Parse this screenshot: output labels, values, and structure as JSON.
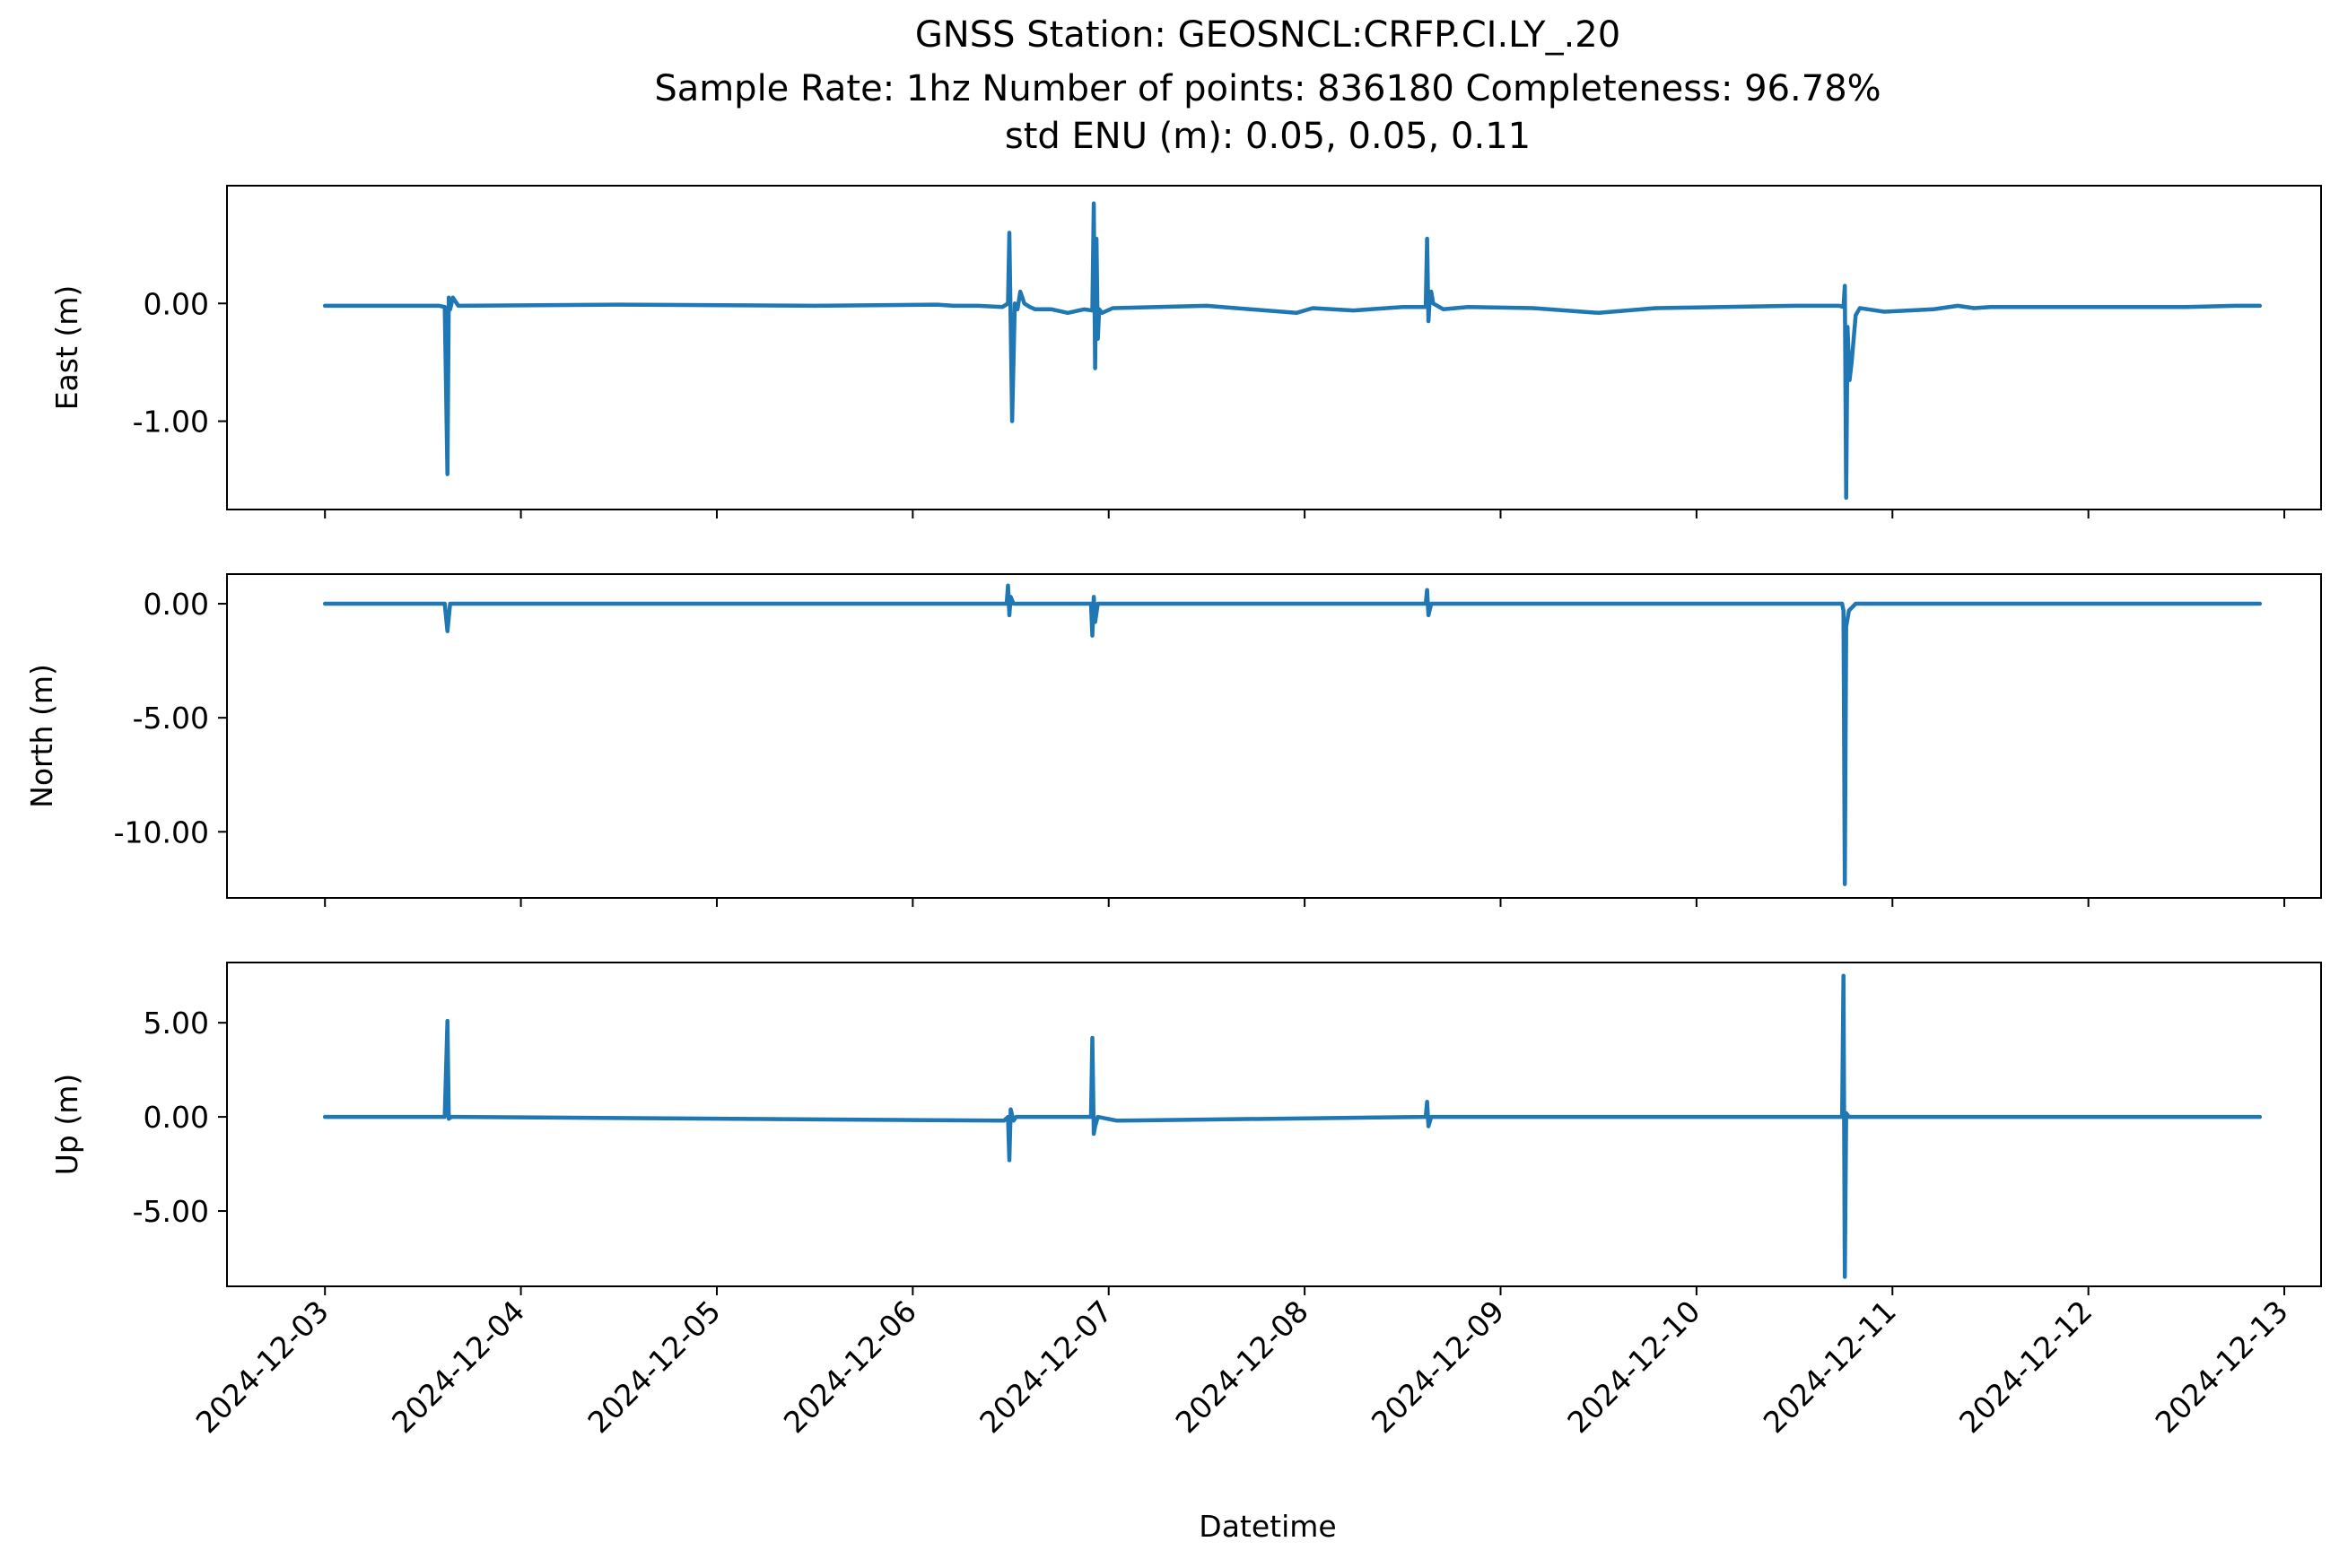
{
  "chart_data": {
    "type": "line",
    "title_lines": [
      "GNSS Station: GEOSNCL:CRFP.CI.LY_.20",
      "Sample Rate: 1hz   Number of points: 836180    Completeness:  96.78%",
      "std ENU (m):  0.05, 0.05, 0.11"
    ],
    "xlabel": "Datetime",
    "x_ticks": [
      "2024-12-03",
      "2024-12-04",
      "2024-12-05",
      "2024-12-06",
      "2024-12-07",
      "2024-12-08",
      "2024-12-09",
      "2024-12-10",
      "2024-12-11",
      "2024-12-12",
      "2024-12-13"
    ],
    "xlim": [
      "2024-12-02 12:00",
      "2024-12-13 04:30"
    ],
    "line_color": "#1f77b4",
    "grid": false,
    "legend": "none",
    "panels": [
      {
        "ylabel": "East (m)",
        "ylim": [
          -1.75,
          1.0
        ],
        "y_ticks": [
          0.0,
          -1.0
        ],
        "y_tick_labels": [
          "0.00",
          "-1.00"
        ],
        "series": [
          {
            "x": [
              "2024-12-03 00:00",
              "2024-12-03 14:00",
              "2024-12-03 14:40",
              "2024-12-03 15:00",
              "2024-12-03 15:10",
              "2024-12-03 15:20",
              "2024-12-03 15:40",
              "2024-12-03 16:20",
              "2024-12-04 12:00",
              "2024-12-05 12:00",
              "2024-12-06 03:00",
              "2024-12-06 05:00",
              "2024-12-06 08:00",
              "2024-12-06 11:00",
              "2024-12-06 11:40",
              "2024-12-06 11:50",
              "2024-12-06 12:10",
              "2024-12-06 12:30",
              "2024-12-06 12:50",
              "2024-12-06 13:10",
              "2024-12-06 13:40",
              "2024-12-06 14:20",
              "2024-12-06 15:00",
              "2024-12-06 17:00",
              "2024-12-06 19:00",
              "2024-12-06 21:00",
              "2024-12-06 22:00",
              "2024-12-06 22:10",
              "2024-12-06 22:20",
              "2024-12-06 22:30",
              "2024-12-06 22:40",
              "2024-12-06 22:50",
              "2024-12-06 23:10",
              "2024-12-07 00:30",
              "2024-12-07 12:00",
              "2024-12-07 23:00",
              "2024-12-08 01:00",
              "2024-12-08 06:00",
              "2024-12-08 12:00",
              "2024-12-08 14:50",
              "2024-12-08 15:00",
              "2024-12-08 15:10",
              "2024-12-08 15:20",
              "2024-12-08 15:30",
              "2024-12-08 15:45",
              "2024-12-08 17:00",
              "2024-12-08 20:00",
              "2024-12-09 04:00",
              "2024-12-09 12:00",
              "2024-12-09 19:00",
              "2024-12-10 12:00",
              "2024-12-10 17:30",
              "2024-12-10 18:00",
              "2024-12-10 18:10",
              "2024-12-10 18:20",
              "2024-12-10 18:30",
              "2024-12-10 18:45",
              "2024-12-10 19:00",
              "2024-12-10 19:30",
              "2024-12-10 20:00",
              "2024-12-10 21:00",
              "2024-12-10 23:00",
              "2024-12-11 05:00",
              "2024-12-11 08:00",
              "2024-12-11 10:00",
              "2024-12-11 12:00",
              "2024-12-12 00:00",
              "2024-12-12 12:00",
              "2024-12-12 18:00",
              "2024-12-12 21:00"
            ],
            "y": [
              -0.02,
              -0.02,
              -0.03,
              -1.45,
              0.05,
              -0.05,
              0.05,
              -0.02,
              -0.01,
              -0.02,
              -0.01,
              -0.02,
              -0.02,
              -0.03,
              0.0,
              0.6,
              -1.0,
              0.0,
              -0.05,
              0.1,
              0.0,
              -0.03,
              -0.05,
              -0.05,
              -0.08,
              -0.05,
              -0.06,
              0.85,
              -0.55,
              0.55,
              -0.3,
              -0.05,
              -0.08,
              -0.04,
              -0.02,
              -0.08,
              -0.04,
              -0.06,
              -0.03,
              -0.03,
              0.55,
              -0.15,
              0.05,
              0.1,
              0.0,
              -0.05,
              -0.03,
              -0.04,
              -0.08,
              -0.04,
              -0.02,
              -0.02,
              -0.03,
              0.15,
              -1.65,
              -0.2,
              -0.65,
              -0.5,
              -0.1,
              -0.04,
              -0.05,
              -0.07,
              -0.05,
              -0.02,
              -0.04,
              -0.03,
              -0.03,
              -0.03,
              -0.02,
              -0.02
            ]
          }
        ]
      },
      {
        "ylabel": "North (m)",
        "ylim": [
          -12.9,
          1.3
        ],
        "y_ticks": [
          0.0,
          -5.0,
          -10.0
        ],
        "y_tick_labels": [
          "0.00",
          "-5.00",
          "-10.00"
        ],
        "series": [
          {
            "x": [
              "2024-12-03 00:00",
              "2024-12-03 14:40",
              "2024-12-03 15:00",
              "2024-12-03 15:20",
              "2024-12-06 11:30",
              "2024-12-06 11:40",
              "2024-12-06 11:50",
              "2024-12-06 12:00",
              "2024-12-06 12:20",
              "2024-12-06 21:50",
              "2024-12-06 22:00",
              "2024-12-06 22:10",
              "2024-12-06 22:20",
              "2024-12-06 22:40",
              "2024-12-08 14:50",
              "2024-12-08 15:00",
              "2024-12-08 15:10",
              "2024-12-08 15:30",
              "2024-12-10 17:50",
              "2024-12-10 18:00",
              "2024-12-10 18:10",
              "2024-12-10 18:20",
              "2024-12-10 18:40",
              "2024-12-10 19:30",
              "2024-12-12 21:00"
            ],
            "y": [
              0.0,
              0.0,
              -1.2,
              0.0,
              0.0,
              0.8,
              -0.5,
              0.3,
              0.0,
              0.0,
              -1.4,
              0.3,
              -0.8,
              0.0,
              0.0,
              0.6,
              -0.5,
              0.0,
              0.0,
              -0.3,
              -12.3,
              -1.0,
              -0.3,
              0.0,
              0.0
            ]
          }
        ]
      },
      {
        "ylabel": "Up (m)",
        "ylim": [
          -9.0,
          8.2
        ],
        "y_ticks": [
          5.0,
          0.0,
          -5.0
        ],
        "y_tick_labels": [
          "5.00",
          "0.00",
          "-5.00"
        ],
        "series": [
          {
            "x": [
              "2024-12-03 00:00",
              "2024-12-03 14:40",
              "2024-12-03 15:00",
              "2024-12-03 15:10",
              "2024-12-03 15:30",
              "2024-12-06 11:10",
              "2024-12-06 11:40",
              "2024-12-06 11:50",
              "2024-12-06 12:00",
              "2024-12-06 12:20",
              "2024-12-06 12:40",
              "2024-12-06 21:50",
              "2024-12-06 22:00",
              "2024-12-06 22:10",
              "2024-12-06 22:20",
              "2024-12-06 22:40",
              "2024-12-07 01:00",
              "2024-12-08 14:50",
              "2024-12-08 15:00",
              "2024-12-08 15:10",
              "2024-12-08 15:30",
              "2024-12-10 17:50",
              "2024-12-10 18:00",
              "2024-12-10 18:10",
              "2024-12-10 18:20",
              "2024-12-10 18:40",
              "2024-12-10 19:30",
              "2024-12-12 21:00"
            ],
            "y": [
              0.0,
              0.0,
              5.1,
              -0.1,
              0.0,
              -0.2,
              0.0,
              -2.3,
              0.4,
              -0.2,
              0.0,
              0.0,
              4.2,
              -0.9,
              -0.5,
              0.0,
              -0.2,
              0.0,
              0.8,
              -0.5,
              0.0,
              0.0,
              7.5,
              -8.5,
              0.2,
              0.0,
              0.0,
              0.0
            ]
          }
        ]
      }
    ]
  }
}
